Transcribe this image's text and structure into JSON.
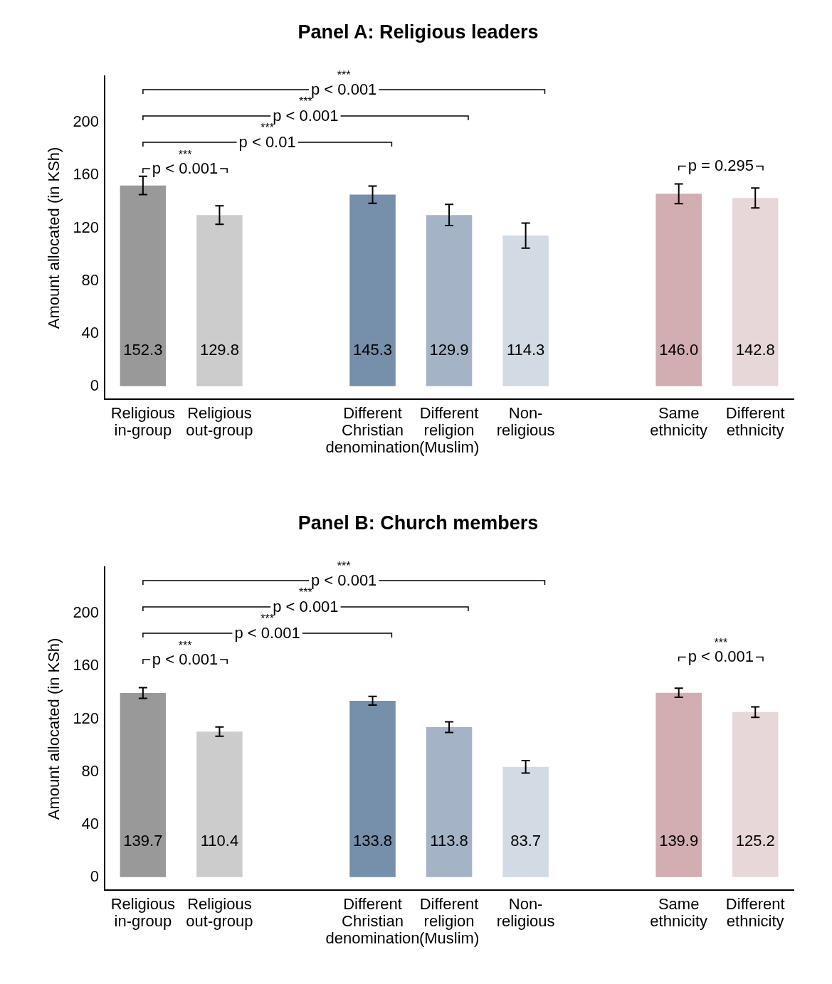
{
  "chart_data": [
    {
      "type": "bar",
      "title": "Panel A: Religious leaders",
      "ylabel": "Amount allocated (in KSh)",
      "categories": [
        "Religious\nin-group",
        "Religious\nout-group",
        null,
        "Different\nChristian\ndenomination",
        "Different\nreligion\n(Muslim)",
        "Non-\nreligious",
        null,
        "Same\nethnicity",
        "Different\nethnicity"
      ],
      "values": [
        152.3,
        129.8,
        null,
        145.3,
        129.9,
        114.3,
        null,
        146.0,
        142.8
      ],
      "colors": [
        "#999999",
        "#cccccc",
        "#cccccc",
        "#768fab",
        "#a4b4c6",
        "#d2dae3",
        "#d2dae3",
        "#d2adb1",
        "#e8d7d8"
      ],
      "errors": [
        7,
        7,
        null,
        6.5,
        8,
        9.5,
        null,
        7.5,
        7.5
      ],
      "value_labels": [
        "152.3",
        "129.8",
        null,
        "145.3",
        "129.9",
        "114.3",
        null,
        "146.0",
        "142.8"
      ],
      "ylim": [
        -10,
        235
      ],
      "yticks": [
        0,
        40,
        80,
        120,
        160,
        200
      ],
      "grid": false,
      "legend": false,
      "annotations": [
        "***",
        "p < 0.001",
        "***",
        "p < 0.01",
        "***",
        "p < 0.001",
        "***",
        "p < 0.001",
        "p = 0.295"
      ]
    },
    {
      "type": "bar",
      "title": "Panel B: Church members",
      "ylabel": "Amount allocated (in KSh)",
      "categories": [
        "Religious\nin-group",
        "Religious\nout-group",
        null,
        "Different\nChristian\ndenomination",
        "Different\nreligion\n(Muslim)",
        "Non-\nreligious",
        null,
        "Same\nethnicity",
        "Different\nethnicity"
      ],
      "values": [
        139.7,
        110.4,
        null,
        133.8,
        113.8,
        83.7,
        null,
        139.9,
        125.2
      ],
      "colors": [
        "#999999",
        "#cccccc",
        "#cccccc",
        "#768fab",
        "#a4b4c6",
        "#d2dae3",
        "#d2dae3",
        "#d2adb1",
        "#e8d7d8"
      ],
      "errors": [
        4,
        3.5,
        null,
        3.3,
        4,
        4.7,
        null,
        3.5,
        4
      ],
      "value_labels": [
        "139.7",
        "110.4",
        null,
        "133.8",
        "113.8",
        "83.7",
        null,
        "139.9",
        "125.2"
      ],
      "ylim": [
        -10,
        235
      ],
      "yticks": [
        0,
        40,
        80,
        120,
        160,
        200
      ],
      "grid": false,
      "legend": false,
      "annotations": [
        "***",
        "p < 0.001",
        "***",
        "p < 0.001",
        "***",
        "p < 0.001",
        "***",
        "p < 0.001",
        "***",
        "p < 0.001"
      ]
    }
  ]
}
